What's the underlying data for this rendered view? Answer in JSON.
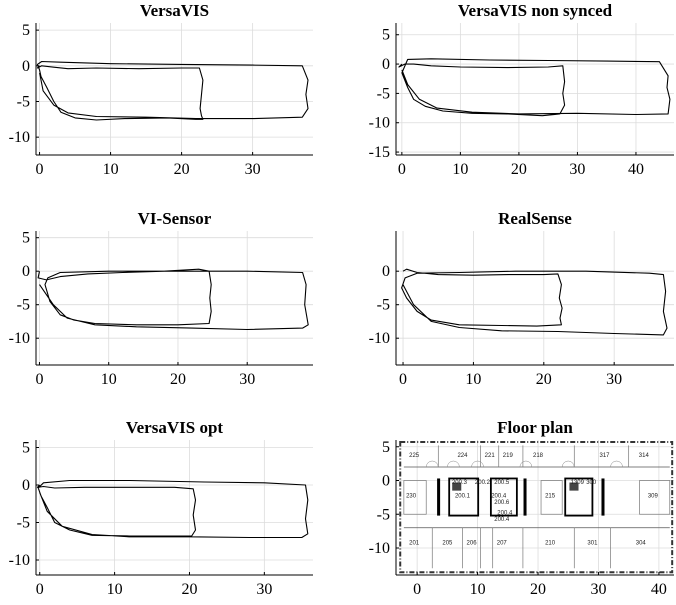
{
  "chart_data": [
    {
      "type": "line",
      "title": "VersaVIS",
      "xlabel": "",
      "ylabel": "",
      "xlim": [
        -0.5,
        38.5
      ],
      "ylim": [
        -12.5,
        6
      ],
      "xticks": [
        0,
        10,
        20,
        30
      ],
      "yticks": [
        5,
        0,
        -5,
        -10
      ],
      "grid": true,
      "series": [
        {
          "x": [
            0,
            -0.3,
            0.3,
            2,
            4,
            8,
            14,
            20,
            22.5,
            23,
            22.8,
            22.6,
            22.8,
            23,
            22,
            18,
            12,
            8,
            5,
            3,
            2,
            1,
            0.2,
            0,
            -0.3,
            0.3,
            3,
            10,
            20,
            30,
            37,
            37.8,
            37.5,
            37.8,
            37,
            30,
            22,
            15,
            8,
            4,
            2,
            0.5,
            0
          ],
          "y": [
            0,
            -0.3,
            0,
            -0.2,
            -0.4,
            -0.3,
            -0.4,
            -0.3,
            -0.3,
            -2,
            -4,
            -6,
            -7,
            -7.5,
            -7.5,
            -7.3,
            -7.4,
            -7.6,
            -7.3,
            -6.5,
            -5,
            -3,
            -1.5,
            -0.6,
            0.2,
            0.6,
            0.5,
            0.3,
            0.2,
            0.1,
            0,
            -2,
            -4,
            -6,
            -7.2,
            -7.4,
            -7.4,
            -7.2,
            -7.1,
            -6.6,
            -5.5,
            -3.5,
            -1
          ]
        }
      ]
    },
    {
      "type": "line",
      "title": "VersaVIS non synced",
      "xlabel": "",
      "ylabel": "",
      "xlim": [
        -1,
        46.5
      ],
      "ylim": [
        -15.5,
        7
      ],
      "xticks": [
        0,
        10,
        20,
        30,
        40
      ],
      "yticks": [
        5,
        0,
        -5,
        -10,
        -15
      ],
      "grid": true,
      "series": [
        {
          "x": [
            0,
            -0.5,
            0.5,
            2,
            5,
            10,
            18,
            25,
            27.5,
            27.8,
            27.5,
            27.8,
            27,
            24,
            18,
            12,
            7,
            4,
            2,
            1,
            0,
            1,
            5,
            15,
            25,
            35,
            44,
            45.5,
            45.3,
            45.8,
            45.5,
            40,
            30,
            20,
            12,
            6,
            3,
            1,
            0
          ],
          "y": [
            0,
            -0.5,
            0,
            0,
            -0.3,
            -0.5,
            -0.6,
            -0.5,
            -0.3,
            -3,
            -5,
            -7,
            -8.5,
            -8.8,
            -8.5,
            -8.4,
            -8,
            -7.2,
            -6,
            -4,
            -1.5,
            0.8,
            0.9,
            0.7,
            0.6,
            0.5,
            0.4,
            -2,
            -4,
            -6,
            -8.5,
            -8.6,
            -8.4,
            -8.5,
            -8.2,
            -7.5,
            -6,
            -3.5,
            -1
          ]
        }
      ]
    },
    {
      "type": "line",
      "title": "VI-Sensor",
      "xlabel": "",
      "ylabel": "",
      "xlim": [
        -0.5,
        39.5
      ],
      "ylim": [
        -14,
        6
      ],
      "xticks": [
        0,
        10,
        20,
        30
      ],
      "yticks": [
        5,
        0,
        -5,
        -10
      ],
      "grid": true,
      "series": [
        {
          "x": [
            0,
            -0.2,
            1,
            3,
            7,
            12,
            18,
            23,
            24.5,
            24.8,
            24.6,
            24.8,
            24.5,
            20,
            14,
            8,
            5,
            3,
            1.5,
            0.8,
            1.2,
            3,
            10,
            20,
            30,
            38,
            38.5,
            38.3,
            38.8,
            38,
            30,
            22,
            14,
            8,
            4,
            2,
            0
          ],
          "y": [
            0,
            -1,
            -1.3,
            -0.8,
            -0.4,
            -0.2,
            0,
            0.3,
            0,
            -2,
            -4,
            -6,
            -7.8,
            -8,
            -8,
            -7.8,
            -7.3,
            -6.5,
            -4.5,
            -2,
            -1,
            -0.2,
            0,
            0,
            0,
            -0.2,
            -2,
            -5,
            -8,
            -8.5,
            -8.7,
            -8.5,
            -8.3,
            -8,
            -7,
            -5,
            -2
          ]
        }
      ]
    },
    {
      "type": "line",
      "title": "RealSense",
      "xlabel": "",
      "ylabel": "",
      "xlim": [
        -1,
        38.5
      ],
      "ylim": [
        -14,
        6
      ],
      "xticks": [
        0,
        10,
        20,
        30
      ],
      "yticks": [
        0,
        -5,
        -10
      ],
      "grid": true,
      "series": [
        {
          "x": [
            0,
            0.5,
            2,
            5,
            10,
            15,
            20,
            22,
            22.5,
            22.2,
            22.6,
            22.3,
            22.5,
            19,
            14,
            8,
            4,
            2,
            0.5,
            -0.2,
            0.3,
            2,
            8,
            16,
            26,
            35,
            37,
            37.3,
            37,
            37.5,
            37,
            30,
            22,
            14,
            8,
            4,
            1.5,
            0
          ],
          "y": [
            0,
            0.3,
            -0.2,
            -0.5,
            -0.6,
            -0.5,
            -0.5,
            -0.4,
            -2,
            -4,
            -5.5,
            -7,
            -8,
            -8.2,
            -8.1,
            -8,
            -7.3,
            -6,
            -4,
            -2.5,
            -1,
            -0.3,
            -0.2,
            0,
            0,
            -0.3,
            -0.5,
            -3,
            -6,
            -8.5,
            -9.5,
            -9.3,
            -9,
            -8.9,
            -8.4,
            -7.5,
            -5,
            -2
          ]
        }
      ]
    },
    {
      "type": "line",
      "title": "VersaVIS opt",
      "xlabel": "",
      "ylabel": "",
      "xlim": [
        -0.5,
        36.5
      ],
      "ylim": [
        -12,
        6
      ],
      "xticks": [
        0,
        10,
        20,
        30
      ],
      "yticks": [
        5,
        0,
        -5,
        -10
      ],
      "grid": true,
      "series": [
        {
          "x": [
            0,
            -0.3,
            0.5,
            2,
            6,
            12,
            18,
            20.5,
            20.8,
            20.5,
            20.8,
            20.3,
            17,
            12,
            7,
            4,
            2,
            1,
            0.2,
            -0.2,
            0.5,
            4,
            12,
            22,
            30,
            35.5,
            35.8,
            35.5,
            35.8,
            35,
            28,
            20,
            12,
            7,
            3,
            1,
            0
          ],
          "y": [
            0,
            -0.3,
            -0.2,
            -0.4,
            -0.3,
            -0.3,
            -0.3,
            -0.5,
            -2,
            -4,
            -6,
            -6.8,
            -6.8,
            -6.8,
            -6.7,
            -6,
            -5,
            -3,
            -1.5,
            -0.4,
            0.3,
            0.6,
            0.6,
            0.4,
            0.3,
            0,
            -2,
            -4.5,
            -6.5,
            -7,
            -7,
            -6.9,
            -6.9,
            -6.6,
            -5.5,
            -3.5,
            -1
          ]
        }
      ]
    },
    {
      "type": "map",
      "title": "Floor plan",
      "xlabel": "",
      "ylabel": "",
      "xlim": [
        -3.5,
        42.5
      ],
      "ylim": [
        -14,
        6
      ],
      "xticks": [
        0,
        10,
        20,
        30,
        40
      ],
      "yticks": [
        5,
        0,
        -5,
        -10
      ],
      "grid": true,
      "room_labels": [
        {
          "label": "225",
          "x": -0.5,
          "y": 3.5
        },
        {
          "label": "224",
          "x": 7.5,
          "y": 3.5
        },
        {
          "label": "221",
          "x": 12,
          "y": 3.5
        },
        {
          "label": "219",
          "x": 15,
          "y": 3.5
        },
        {
          "label": "218",
          "x": 20,
          "y": 3.5
        },
        {
          "label": "317",
          "x": 31,
          "y": 3.5
        },
        {
          "label": "314",
          "x": 37.5,
          "y": 3.5
        },
        {
          "label": "230",
          "x": -1,
          "y": -2.5
        },
        {
          "label": "215",
          "x": 22,
          "y": -2.5
        },
        {
          "label": "309",
          "x": 39,
          "y": -2.5
        },
        {
          "label": "201",
          "x": -0.5,
          "y": -9.5
        },
        {
          "label": "205",
          "x": 5,
          "y": -9.5
        },
        {
          "label": "206",
          "x": 9,
          "y": -9.5
        },
        {
          "label": "207",
          "x": 14,
          "y": -9.5
        },
        {
          "label": "210",
          "x": 22,
          "y": -9.5
        },
        {
          "label": "301",
          "x": 29,
          "y": -9.5
        },
        {
          "label": "304",
          "x": 37,
          "y": -9.5
        },
        {
          "label": "200.3",
          "x": 7,
          "y": -0.5
        },
        {
          "label": "200.1",
          "x": 7.5,
          "y": -2.5
        },
        {
          "label": "200.2",
          "x": 10.8,
          "y": -0.5
        },
        {
          "label": "200.5",
          "x": 14,
          "y": -0.5
        },
        {
          "label": "200.4",
          "x": 13.5,
          "y": -2.5
        },
        {
          "label": "200.4",
          "x": 14.5,
          "y": -5
        },
        {
          "label": "200.6",
          "x": 14,
          "y": -3.5
        },
        {
          "label": "200.4",
          "x": 14,
          "y": -6
        },
        {
          "label": "1309",
          "x": 26.5,
          "y": -0.5
        },
        {
          "label": "300",
          "x": 28.8,
          "y": -0.5
        }
      ]
    }
  ]
}
